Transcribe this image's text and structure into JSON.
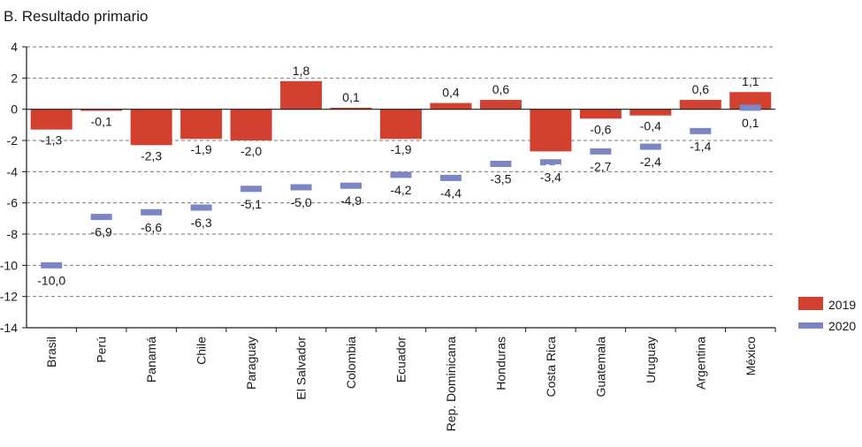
{
  "chart_data": {
    "type": "bar",
    "title": "B. Resultado primario",
    "xlabel": "",
    "ylabel": "",
    "ylim": [
      -14,
      4
    ],
    "yticks": [
      4,
      2,
      0,
      -2,
      -4,
      -6,
      -8,
      -10,
      -12,
      -14
    ],
    "ytick_labels": [
      "4",
      "2",
      "0",
      "-2",
      "-4",
      "-6",
      "-8",
      "-10",
      "-12",
      "-14"
    ],
    "grid": true,
    "legend_position": "right",
    "categories": [
      "Brasil",
      "Perú",
      "Panamá",
      "Chile",
      "Paraguay",
      "El Salvador",
      "Colombia",
      "Ecuador",
      "Rep. Dominicana",
      "Honduras",
      "Costa Rica",
      "Guatemala",
      "Uruguay",
      "Argentina",
      "México"
    ],
    "series": [
      {
        "name": "2019",
        "mark": "bar",
        "color": "#d2402f",
        "values": [
          -1.3,
          -0.1,
          -2.3,
          -1.9,
          -2.0,
          1.8,
          0.1,
          -1.9,
          0.4,
          0.6,
          -2.7,
          -0.6,
          -0.4,
          0.6,
          1.1
        ],
        "labels": [
          "-1,3",
          "-0,1",
          "-2,3",
          "-1,9",
          "-2,0",
          "1,8",
          "0,1",
          "-1,9",
          "0,4",
          "0,6",
          "-2,7",
          "-0,6",
          "-0,4",
          "0,6",
          "1,1"
        ]
      },
      {
        "name": "2020",
        "mark": "dash",
        "color": "#7b86c4",
        "values": [
          -10.0,
          -6.9,
          -6.6,
          -6.3,
          -5.1,
          -5.0,
          -4.9,
          -4.2,
          -4.4,
          -3.5,
          -3.4,
          -2.7,
          -2.4,
          -1.4,
          0.1
        ],
        "labels": [
          "-10,0",
          "-6,9",
          "-6,6",
          "-6,3",
          "-5,1",
          "-5,0",
          "-4,9",
          "-4,2",
          "-4,4",
          "-3,5",
          "-3,4",
          "-2,7",
          "-2,4",
          "-1,4",
          "0,1"
        ]
      }
    ]
  },
  "colors": {
    "axis": "#1a1a1a",
    "grid": "#7a7a7a",
    "label_halo": "#d2402f",
    "label_text": "#1a1a1a"
  }
}
